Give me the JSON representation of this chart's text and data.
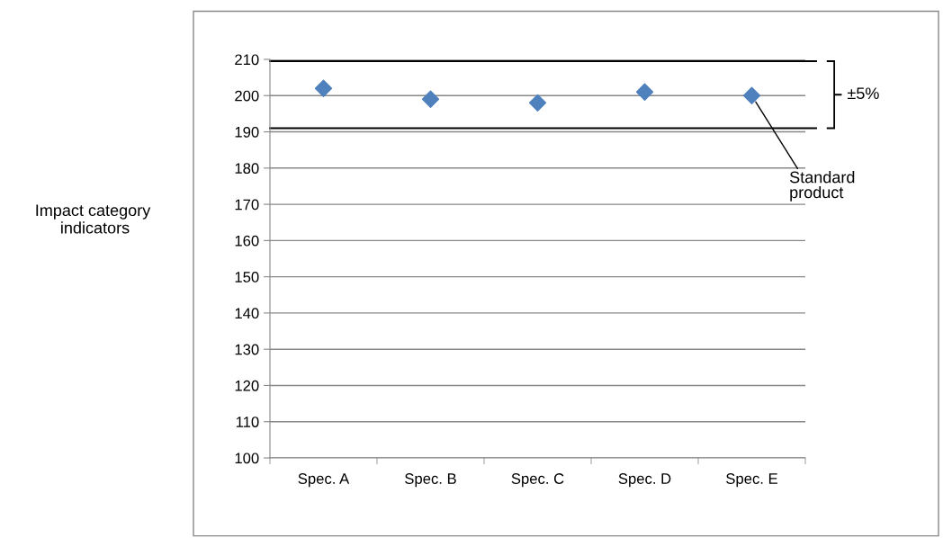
{
  "chart_data": {
    "type": "scatter",
    "categories": [
      "Spec. A",
      "Spec. B",
      "Spec. C",
      "Spec. D",
      "Spec. E"
    ],
    "series": [
      {
        "color": "#4f81bd",
        "values": [
          202,
          199,
          198,
          201,
          200
        ]
      }
    ],
    "marker": "diamond",
    "ylim": [
      100,
      210
    ],
    "yticks": [
      100,
      110,
      120,
      130,
      140,
      150,
      160,
      170,
      180,
      190,
      200,
      210
    ],
    "grid": "y",
    "ref_lines": [
      {
        "axis": "y",
        "value": 209.5,
        "color": "#000000"
      },
      {
        "axis": "y",
        "value": 191,
        "color": "#000000"
      }
    ],
    "annotations": [
      "Impact category\n indicators",
      "±5%",
      {
        "text": "Standard\nproduct",
        "x": "Spec. E",
        "y": 200
      }
    ]
  }
}
